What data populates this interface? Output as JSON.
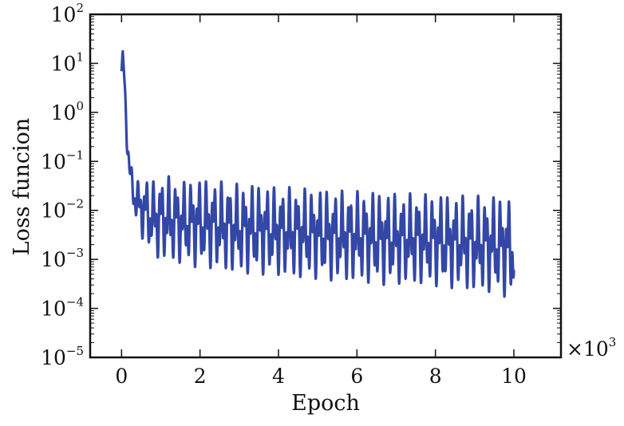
{
  "chart_data": {
    "type": "line",
    "title": "",
    "xlabel": "Epoch",
    "ylabel": "Loss funcion",
    "x_multiplier_label": {
      "base": "×10",
      "exponent": "3"
    },
    "xlim": [
      -0.8,
      11.2
    ],
    "ylim": [
      1e-05,
      100
    ],
    "yscale": "log",
    "grid": false,
    "legend": "none",
    "x_ticks": [
      {
        "value": 0,
        "label": "0"
      },
      {
        "value": 2,
        "label": "2"
      },
      {
        "value": 4,
        "label": "4"
      },
      {
        "value": 6,
        "label": "6"
      },
      {
        "value": 8,
        "label": "8"
      },
      {
        "value": 10,
        "label": "10"
      }
    ],
    "y_ticks": [
      {
        "value": 100,
        "base": "10",
        "exponent": "2"
      },
      {
        "value": 10,
        "base": "10",
        "exponent": "1"
      },
      {
        "value": 1,
        "base": "10",
        "exponent": "0"
      },
      {
        "value": 0.1,
        "base": "10",
        "exponent": "−1"
      },
      {
        "value": 0.01,
        "base": "10",
        "exponent": "−2"
      },
      {
        "value": 0.001,
        "base": "10",
        "exponent": "−3"
      },
      {
        "value": 0.0001,
        "base": "10",
        "exponent": "−4"
      },
      {
        "value": 1e-05,
        "base": "10",
        "exponent": "−5"
      }
    ],
    "series": [
      {
        "color": "#3347a6",
        "x": [
          0.0,
          0.03,
          0.06,
          0.1,
          0.15,
          0.2,
          0.25,
          0.3,
          0.35,
          0.4,
          0.45,
          0.5,
          0.6,
          0.7,
          0.8,
          0.9,
          1.0,
          1.2,
          1.4,
          1.6,
          1.8,
          2.0,
          2.5,
          3.0,
          3.5,
          4.0,
          4.5,
          5.0,
          5.5,
          6.0,
          6.5,
          7.0,
          7.5,
          8.0,
          8.5,
          9.0,
          9.5,
          10.0
        ],
        "upper": [
          8,
          20,
          12,
          3,
          0.6,
          0.12,
          0.08,
          0.06,
          0.05,
          0.045,
          0.04,
          0.04,
          0.05,
          0.045,
          0.04,
          0.045,
          0.05,
          0.05,
          0.045,
          0.04,
          0.045,
          0.045,
          0.04,
          0.035,
          0.035,
          0.03,
          0.03,
          0.028,
          0.026,
          0.025,
          0.025,
          0.023,
          0.022,
          0.022,
          0.021,
          0.02,
          0.02,
          0.02
        ],
        "lower": [
          6,
          8,
          4,
          0.6,
          0.12,
          0.04,
          0.02,
          0.01,
          0.006,
          0.005,
          0.004,
          0.003,
          0.002,
          0.0015,
          0.0012,
          0.001,
          0.001,
          0.0009,
          0.0008,
          0.0008,
          0.0007,
          0.0007,
          0.0006,
          0.0005,
          0.0005,
          0.00045,
          0.0004,
          0.0004,
          0.00035,
          0.00035,
          0.0003,
          0.0003,
          0.0003,
          0.00028,
          0.00025,
          0.00022,
          0.0002,
          0.00015
        ]
      }
    ]
  }
}
